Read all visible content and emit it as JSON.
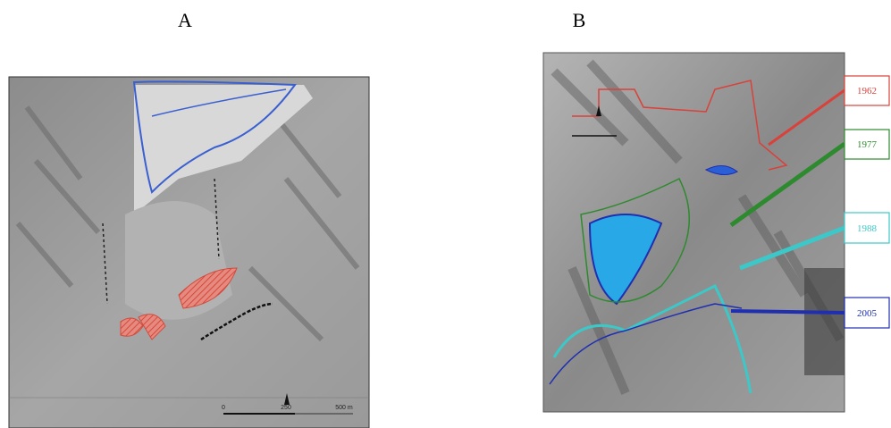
{
  "panels": [
    {
      "label": "A",
      "scale": {
        "start": "0",
        "mid": "250",
        "end": "500 m"
      }
    },
    {
      "label": "B",
      "legend": [
        {
          "year": "1962",
          "color": "#d9413a"
        },
        {
          "year": "1977",
          "color": "#2e8a2e"
        },
        {
          "year": "1988",
          "color": "#3cc8c8"
        },
        {
          "year": "2005",
          "color": "#1f2fb0"
        }
      ]
    }
  ]
}
